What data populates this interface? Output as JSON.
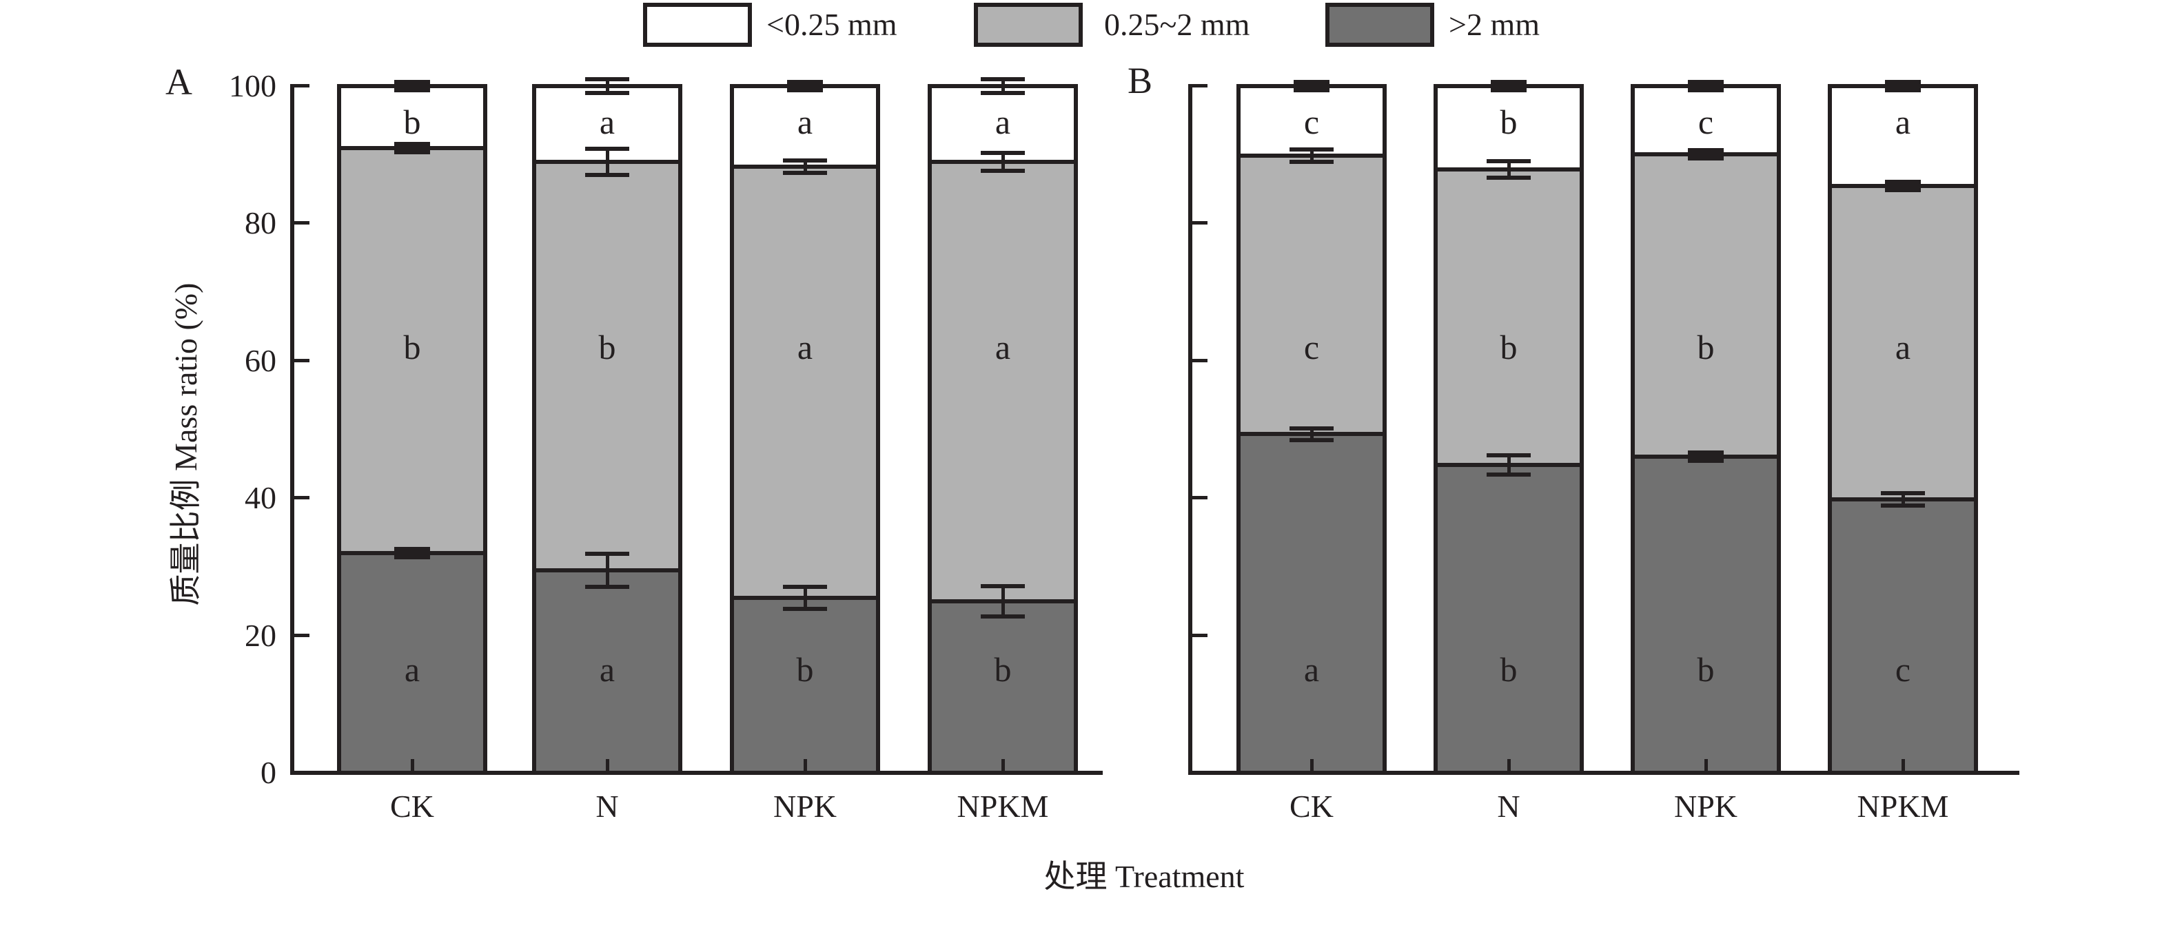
{
  "figure": {
    "y_axis": {
      "title": "质量比例 Mass ratio (%)",
      "ticks": [
        0,
        20,
        40,
        60,
        80,
        100
      ],
      "range": [
        0,
        100
      ]
    },
    "x_axis": {
      "title": "处理 Treatment",
      "categories": [
        "CK",
        "N",
        "NPK",
        "NPKM"
      ]
    },
    "legend": {
      "position": "top-center",
      "items": [
        {
          "label": "<0.25 mm",
          "color": "#ffffff"
        },
        {
          "label": "0.25~2 mm",
          "color": "#b2b2b2"
        },
        {
          "label": ">2 mm",
          "color": "#717171"
        }
      ]
    },
    "colors": {
      "line": "#231f20",
      "fill_dark": "#717171",
      "fill_light": "#b2b2b2",
      "fill_white": "#ffffff"
    }
  },
  "chart_data": [
    {
      "panel": "A",
      "type": "bar",
      "stacked": true,
      "grid": false,
      "categories": [
        "CK",
        "N",
        "NPK",
        "NPKM"
      ],
      "ylim": [
        0,
        100
      ],
      "yticks_labeled": true,
      "series": [
        {
          "name": ">2 mm",
          "values": [
            32.0,
            29.5,
            25.5,
            25.0
          ],
          "errors": [
            0.6,
            2.4,
            1.6,
            2.2
          ],
          "sig_letters": [
            "a",
            "a",
            "b",
            "b"
          ]
        },
        {
          "name": "0.25~2 mm",
          "values": [
            59.0,
            59.5,
            62.8,
            64.0
          ],
          "errors": [
            0.6,
            1.9,
            0.9,
            1.3
          ],
          "sig_letters": [
            "b",
            "b",
            "a",
            "a"
          ]
        },
        {
          "name": "<0.25 mm",
          "values": [
            9.0,
            11.0,
            11.7,
            11.0
          ],
          "errors": [
            0.6,
            1.0,
            0.5,
            1.0
          ],
          "sig_letters": [
            "b",
            "a",
            "a",
            "a"
          ]
        }
      ]
    },
    {
      "panel": "B",
      "type": "bar",
      "stacked": true,
      "grid": false,
      "categories": [
        "CK",
        "N",
        "NPK",
        "NPKM"
      ],
      "ylim": [
        0,
        100
      ],
      "yticks_labeled": false,
      "series": [
        {
          "name": ">2 mm",
          "values": [
            49.3,
            44.8,
            46.0,
            39.8
          ],
          "errors": [
            0.9,
            1.4,
            0.6,
            0.9
          ],
          "sig_letters": [
            "a",
            "b",
            "b",
            "c"
          ]
        },
        {
          "name": "0.25~2 mm",
          "values": [
            40.6,
            43.1,
            44.1,
            45.7
          ],
          "errors": [
            0.9,
            1.2,
            0.6,
            0.5
          ],
          "sig_letters": [
            "c",
            "b",
            "b",
            "a"
          ]
        },
        {
          "name": "<0.25 mm",
          "values": [
            10.1,
            12.1,
            9.9,
            14.5
          ],
          "errors": [
            0.5,
            0.5,
            0.5,
            0.6
          ],
          "sig_letters": [
            "c",
            "b",
            "c",
            "a"
          ]
        }
      ]
    }
  ]
}
